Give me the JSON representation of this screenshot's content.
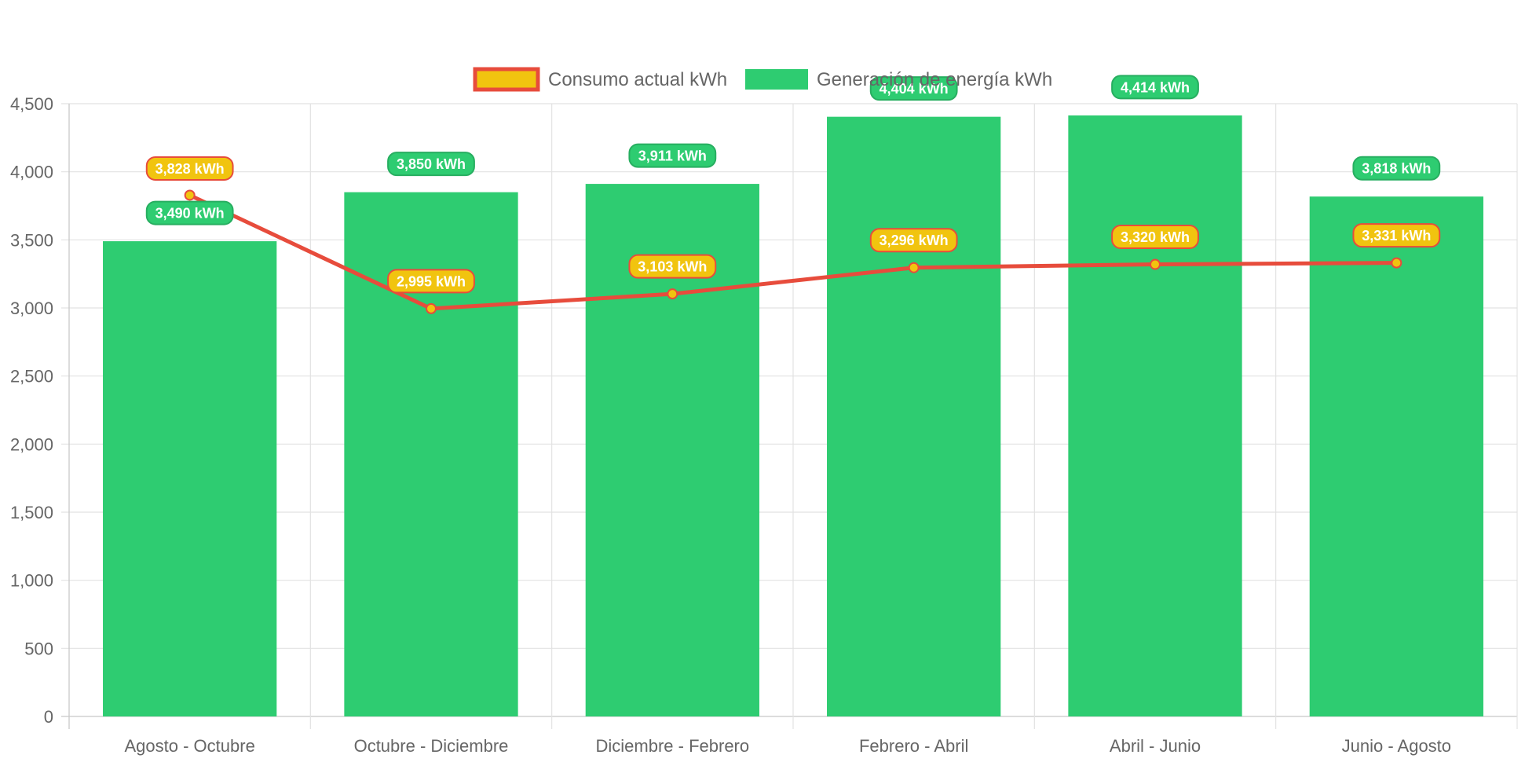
{
  "chart_data": {
    "type": "bar",
    "categories": [
      "Agosto - Octubre",
      "Octubre - Diciembre",
      "Diciembre - Febrero",
      "Febrero - Abril",
      "Abril - Junio",
      "Junio - Agosto"
    ],
    "ylim": [
      0,
      4500
    ],
    "yticks": [
      0,
      500,
      1000,
      1500,
      2000,
      2500,
      3000,
      3500,
      4000,
      4500
    ],
    "ytick_labels": [
      "0",
      "500",
      "1,000",
      "1,500",
      "2,000",
      "2,500",
      "3,000",
      "3,500",
      "4,000",
      "4,500"
    ],
    "grid": true,
    "legend_position": "top-center",
    "series": [
      {
        "name": "Consumo actual kWh",
        "type": "line",
        "values": [
          3828,
          2995,
          3103,
          3296,
          3320,
          3331
        ],
        "labels": [
          "3,828 kWh",
          "2,995 kWh",
          "3,103 kWh",
          "3,296 kWh",
          "3,320 kWh",
          "3,331 kWh"
        ],
        "line_color": "#e74c3c",
        "fill_color": "#f1c40f"
      },
      {
        "name": "Generación de energía kWh",
        "type": "bar",
        "values": [
          3490,
          3850,
          3911,
          4404,
          4414,
          3818
        ],
        "labels": [
          "3,490 kWh",
          "3,850 kWh",
          "3,911 kWh",
          "4,404 kWh",
          "4,414 kWh",
          "3,818 kWh"
        ],
        "color": "#2ecc71",
        "badge_border": "#27ae60"
      }
    ]
  }
}
